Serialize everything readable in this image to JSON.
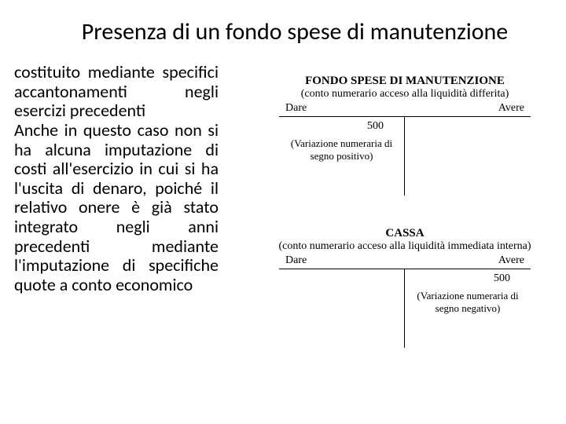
{
  "title": "Presenza di un fondo spese di manutenzione",
  "body_text": "costituito mediante specifici accantonamenti negli esercizi precedenti\nAnche in questo caso non si ha alcuna imputazione di costi all'esercizio in cui si ha l'uscita di denaro, poiché il relativo onere è già stato integrato negli anni precedenti mediante l'imputazione di specifiche quote a conto economico",
  "accounts": [
    {
      "name": "FONDO SPESE DI MANUTENZIONE",
      "subtitle": "(conto numerario acceso alla liquidità differita)",
      "dare_label": "Dare",
      "avere_label": "Avere",
      "left_amount": "500",
      "left_variation": "(Variazione numeraria di segno positivo)",
      "right_amount": "",
      "right_variation": ""
    },
    {
      "name": "CASSA",
      "subtitle": "(conto numerario acceso alla liquidità immediata interna)",
      "dare_label": "Dare",
      "avere_label": "Avere",
      "left_amount": "",
      "left_variation": "",
      "right_amount": "500",
      "right_variation": "(Variazione numeraria di segno negativo)"
    }
  ],
  "colors": {
    "background": "#ffffff",
    "text": "#000000",
    "line": "#000000"
  },
  "fonts": {
    "title_size": 30,
    "body_size": 22,
    "account_title_size": 15,
    "account_label_size": 14
  }
}
